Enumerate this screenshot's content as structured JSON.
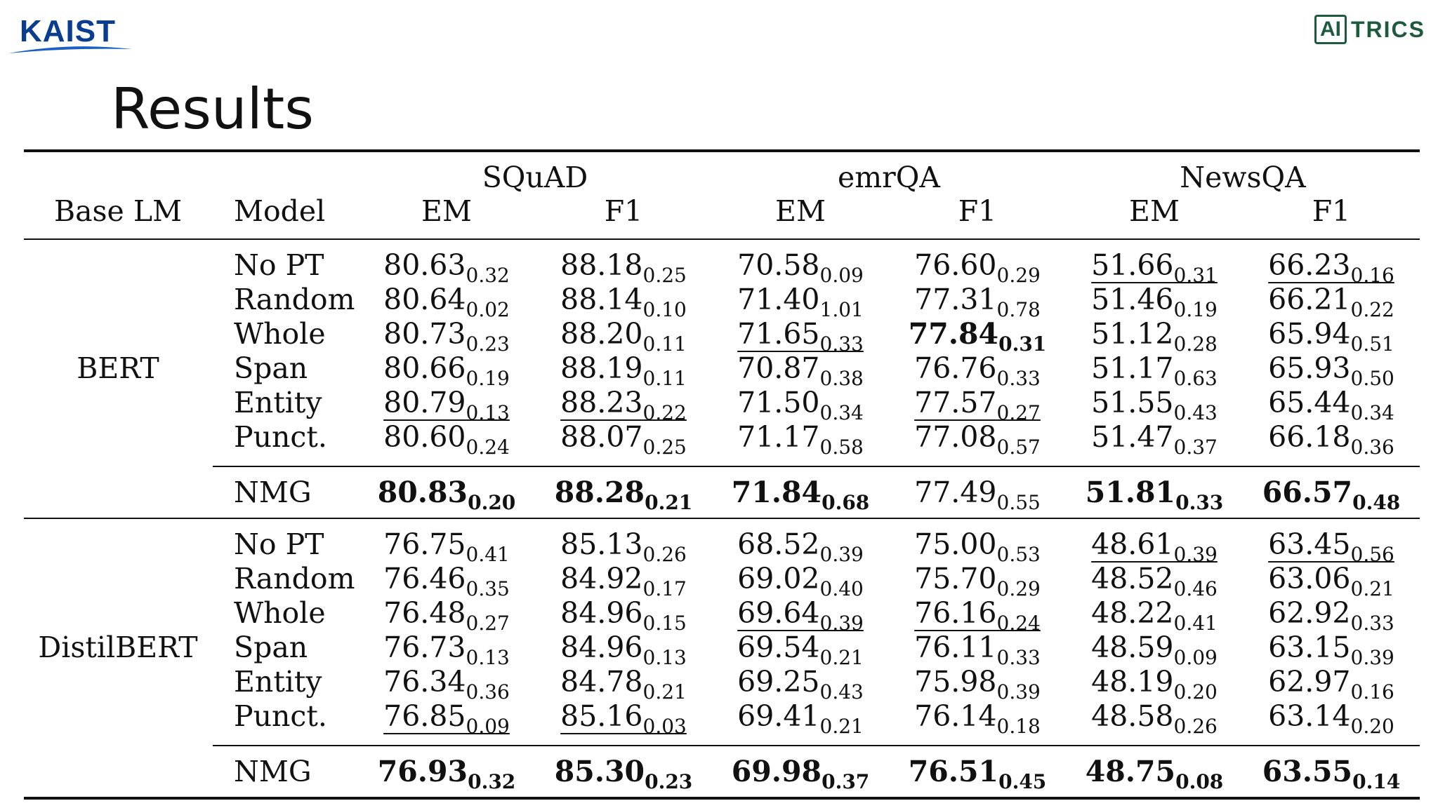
{
  "header": {
    "left_logo": "KAIST",
    "right_logo_box": "AI",
    "right_logo_text": "TRICS"
  },
  "slide_title": "Results",
  "table": {
    "group_headers": [
      "SQuAD",
      "emrQA",
      "NewsQA"
    ],
    "column_headers": [
      "Base LM",
      "Model",
      "EM",
      "F1",
      "EM",
      "F1",
      "EM",
      "F1"
    ],
    "sections": [
      {
        "base_lm": "BERT",
        "rows": [
          {
            "model": "No PT",
            "cells": [
              {
                "v": "80.63",
                "s": "0.32",
                "b": false,
                "u": false
              },
              {
                "v": "88.18",
                "s": "0.25",
                "b": false,
                "u": false
              },
              {
                "v": "70.58",
                "s": "0.09",
                "b": false,
                "u": false
              },
              {
                "v": "76.60",
                "s": "0.29",
                "b": false,
                "u": false
              },
              {
                "v": "51.66",
                "s": "0.31",
                "b": false,
                "u": true
              },
              {
                "v": "66.23",
                "s": "0.16",
                "b": false,
                "u": true
              }
            ]
          },
          {
            "model": "Random",
            "cells": [
              {
                "v": "80.64",
                "s": "0.02",
                "b": false,
                "u": false
              },
              {
                "v": "88.14",
                "s": "0.10",
                "b": false,
                "u": false
              },
              {
                "v": "71.40",
                "s": "1.01",
                "b": false,
                "u": false
              },
              {
                "v": "77.31",
                "s": "0.78",
                "b": false,
                "u": false
              },
              {
                "v": "51.46",
                "s": "0.19",
                "b": false,
                "u": false
              },
              {
                "v": "66.21",
                "s": "0.22",
                "b": false,
                "u": false
              }
            ]
          },
          {
            "model": "Whole",
            "cells": [
              {
                "v": "80.73",
                "s": "0.23",
                "b": false,
                "u": false
              },
              {
                "v": "88.20",
                "s": "0.11",
                "b": false,
                "u": false
              },
              {
                "v": "71.65",
                "s": "0.33",
                "b": false,
                "u": true
              },
              {
                "v": "77.84",
                "s": "0.31",
                "b": true,
                "u": false
              },
              {
                "v": "51.12",
                "s": "0.28",
                "b": false,
                "u": false
              },
              {
                "v": "65.94",
                "s": "0.51",
                "b": false,
                "u": false
              }
            ]
          },
          {
            "model": "Span",
            "cells": [
              {
                "v": "80.66",
                "s": "0.19",
                "b": false,
                "u": false
              },
              {
                "v": "88.19",
                "s": "0.11",
                "b": false,
                "u": false
              },
              {
                "v": "70.87",
                "s": "0.38",
                "b": false,
                "u": false
              },
              {
                "v": "76.76",
                "s": "0.33",
                "b": false,
                "u": false
              },
              {
                "v": "51.17",
                "s": "0.63",
                "b": false,
                "u": false
              },
              {
                "v": "65.93",
                "s": "0.50",
                "b": false,
                "u": false
              }
            ]
          },
          {
            "model": "Entity",
            "cells": [
              {
                "v": "80.79",
                "s": "0.13",
                "b": false,
                "u": true
              },
              {
                "v": "88.23",
                "s": "0.22",
                "b": false,
                "u": true
              },
              {
                "v": "71.50",
                "s": "0.34",
                "b": false,
                "u": false
              },
              {
                "v": "77.57",
                "s": "0.27",
                "b": false,
                "u": true
              },
              {
                "v": "51.55",
                "s": "0.43",
                "b": false,
                "u": false
              },
              {
                "v": "65.44",
                "s": "0.34",
                "b": false,
                "u": false
              }
            ]
          },
          {
            "model": "Punct.",
            "cells": [
              {
                "v": "80.60",
                "s": "0.24",
                "b": false,
                "u": false
              },
              {
                "v": "88.07",
                "s": "0.25",
                "b": false,
                "u": false
              },
              {
                "v": "71.17",
                "s": "0.58",
                "b": false,
                "u": false
              },
              {
                "v": "77.08",
                "s": "0.57",
                "b": false,
                "u": false
              },
              {
                "v": "51.47",
                "s": "0.37",
                "b": false,
                "u": false
              },
              {
                "v": "66.18",
                "s": "0.36",
                "b": false,
                "u": false
              }
            ]
          }
        ],
        "nmg": {
          "model": "NMG",
          "cells": [
            {
              "v": "80.83",
              "s": "0.20",
              "b": true,
              "u": false
            },
            {
              "v": "88.28",
              "s": "0.21",
              "b": true,
              "u": false
            },
            {
              "v": "71.84",
              "s": "0.68",
              "b": true,
              "u": false
            },
            {
              "v": "77.49",
              "s": "0.55",
              "b": false,
              "u": false
            },
            {
              "v": "51.81",
              "s": "0.33",
              "b": true,
              "u": false
            },
            {
              "v": "66.57",
              "s": "0.48",
              "b": true,
              "u": false
            }
          ]
        }
      },
      {
        "base_lm": "DistilBERT",
        "rows": [
          {
            "model": "No PT",
            "cells": [
              {
                "v": "76.75",
                "s": "0.41",
                "b": false,
                "u": false
              },
              {
                "v": "85.13",
                "s": "0.26",
                "b": false,
                "u": false
              },
              {
                "v": "68.52",
                "s": "0.39",
                "b": false,
                "u": false
              },
              {
                "v": "75.00",
                "s": "0.53",
                "b": false,
                "u": false
              },
              {
                "v": "48.61",
                "s": "0.39",
                "b": false,
                "u": true
              },
              {
                "v": "63.45",
                "s": "0.56",
                "b": false,
                "u": true
              }
            ]
          },
          {
            "model": "Random",
            "cells": [
              {
                "v": "76.46",
                "s": "0.35",
                "b": false,
                "u": false
              },
              {
                "v": "84.92",
                "s": "0.17",
                "b": false,
                "u": false
              },
              {
                "v": "69.02",
                "s": "0.40",
                "b": false,
                "u": false
              },
              {
                "v": "75.70",
                "s": "0.29",
                "b": false,
                "u": false
              },
              {
                "v": "48.52",
                "s": "0.46",
                "b": false,
                "u": false
              },
              {
                "v": "63.06",
                "s": "0.21",
                "b": false,
                "u": false
              }
            ]
          },
          {
            "model": "Whole",
            "cells": [
              {
                "v": "76.48",
                "s": "0.27",
                "b": false,
                "u": false
              },
              {
                "v": "84.96",
                "s": "0.15",
                "b": false,
                "u": false
              },
              {
                "v": "69.64",
                "s": "0.39",
                "b": false,
                "u": true
              },
              {
                "v": "76.16",
                "s": "0.24",
                "b": false,
                "u": true
              },
              {
                "v": "48.22",
                "s": "0.41",
                "b": false,
                "u": false
              },
              {
                "v": "62.92",
                "s": "0.33",
                "b": false,
                "u": false
              }
            ]
          },
          {
            "model": "Span",
            "cells": [
              {
                "v": "76.73",
                "s": "0.13",
                "b": false,
                "u": false
              },
              {
                "v": "84.96",
                "s": "0.13",
                "b": false,
                "u": false
              },
              {
                "v": "69.54",
                "s": "0.21",
                "b": false,
                "u": false
              },
              {
                "v": "76.11",
                "s": "0.33",
                "b": false,
                "u": false
              },
              {
                "v": "48.59",
                "s": "0.09",
                "b": false,
                "u": false
              },
              {
                "v": "63.15",
                "s": "0.39",
                "b": false,
                "u": false
              }
            ]
          },
          {
            "model": "Entity",
            "cells": [
              {
                "v": "76.34",
                "s": "0.36",
                "b": false,
                "u": false
              },
              {
                "v": "84.78",
                "s": "0.21",
                "b": false,
                "u": false
              },
              {
                "v": "69.25",
                "s": "0.43",
                "b": false,
                "u": false
              },
              {
                "v": "75.98",
                "s": "0.39",
                "b": false,
                "u": false
              },
              {
                "v": "48.19",
                "s": "0.20",
                "b": false,
                "u": false
              },
              {
                "v": "62.97",
                "s": "0.16",
                "b": false,
                "u": false
              }
            ]
          },
          {
            "model": "Punct.",
            "cells": [
              {
                "v": "76.85",
                "s": "0.09",
                "b": false,
                "u": true
              },
              {
                "v": "85.16",
                "s": "0.03",
                "b": false,
                "u": true
              },
              {
                "v": "69.41",
                "s": "0.21",
                "b": false,
                "u": false
              },
              {
                "v": "76.14",
                "s": "0.18",
                "b": false,
                "u": false
              },
              {
                "v": "48.58",
                "s": "0.26",
                "b": false,
                "u": false
              },
              {
                "v": "63.14",
                "s": "0.20",
                "b": false,
                "u": false
              }
            ]
          }
        ],
        "nmg": {
          "model": "NMG",
          "cells": [
            {
              "v": "76.93",
              "s": "0.32",
              "b": true,
              "u": false
            },
            {
              "v": "85.30",
              "s": "0.23",
              "b": true,
              "u": false
            },
            {
              "v": "69.98",
              "s": "0.37",
              "b": true,
              "u": false
            },
            {
              "v": "76.51",
              "s": "0.45",
              "b": true,
              "u": false
            },
            {
              "v": "48.75",
              "s": "0.08",
              "b": true,
              "u": false
            },
            {
              "v": "63.55",
              "s": "0.14",
              "b": true,
              "u": false
            }
          ]
        }
      }
    ]
  }
}
